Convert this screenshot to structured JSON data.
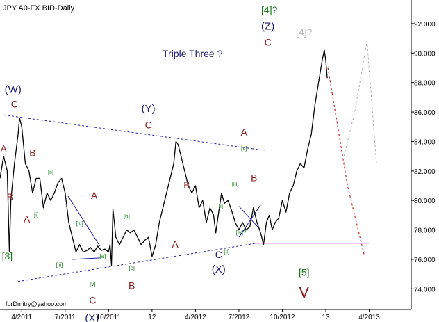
{
  "chart_data": {
    "type": "line",
    "title": "JPY A0-FX BID-Daily",
    "annotation_title": "Triple Three ?",
    "footer": "forDmitry@yahoo.com",
    "y_axis": {
      "position": "right",
      "range": [
        72.6,
        93.6
      ],
      "ticks": [
        74,
        76,
        78,
        80,
        82,
        84,
        86,
        88,
        90,
        92
      ],
      "tick_labels": [
        "74.000",
        "76.000",
        "78.000",
        "80.000",
        "82.000",
        "84.000",
        "86.000",
        "88.000",
        "90.000",
        "92.000"
      ]
    },
    "x_axis": {
      "range": [
        0,
        56.8
      ],
      "ticks": [
        {
          "x": 3,
          "label": "4/2011"
        },
        {
          "x": 9,
          "label": "7/2011"
        },
        {
          "x": 15,
          "label": "10/2011"
        },
        {
          "x": 21,
          "label": "12"
        },
        {
          "x": 27,
          "label": "4/2012"
        },
        {
          "x": 33,
          "label": "7/2012"
        },
        {
          "x": 39,
          "label": "10/2012"
        },
        {
          "x": 45,
          "label": "13"
        },
        {
          "x": 51,
          "label": "4/2013"
        }
      ]
    },
    "series": [
      {
        "values": [
          [
            0.0,
            81.5
          ],
          [
            0.5,
            83.0
          ],
          [
            1.0,
            82.0
          ],
          [
            1.3,
            76.5
          ],
          [
            1.5,
            80.0
          ],
          [
            2.0,
            82.5
          ],
          [
            2.5,
            84.5
          ],
          [
            2.7,
            85.6
          ],
          [
            3.0,
            85.0
          ],
          [
            3.5,
            82.5
          ],
          [
            4.0,
            82.0
          ],
          [
            4.5,
            80.5
          ],
          [
            5.0,
            81.5
          ],
          [
            5.5,
            81.5
          ],
          [
            6.0,
            79.5
          ],
          [
            6.5,
            80.5
          ],
          [
            7.0,
            80.0
          ],
          [
            7.5,
            80.5
          ],
          [
            8.0,
            81.2
          ],
          [
            8.5,
            81.5
          ],
          [
            9.0,
            80.5
          ],
          [
            9.5,
            78.5
          ],
          [
            10.0,
            77.5
          ],
          [
            10.5,
            76.5
          ],
          [
            11.0,
            77.0
          ],
          [
            11.5,
            76.5
          ],
          [
            12.0,
            76.6
          ],
          [
            12.5,
            76.8
          ],
          [
            13.0,
            76.5
          ],
          [
            13.5,
            76.9
          ],
          [
            14.0,
            76.6
          ],
          [
            14.5,
            76.7
          ],
          [
            15.0,
            76.5
          ],
          [
            15.2,
            77.0
          ],
          [
            15.4,
            75.6
          ],
          [
            15.6,
            79.4
          ],
          [
            16.0,
            77.5
          ],
          [
            16.5,
            77.0
          ],
          [
            17.0,
            77.5
          ],
          [
            17.5,
            78.0
          ],
          [
            18.0,
            77.8
          ],
          [
            18.5,
            78.0
          ],
          [
            19.0,
            77.5
          ],
          [
            19.5,
            77.0
          ],
          [
            20.0,
            77.3
          ],
          [
            20.5,
            77.5
          ],
          [
            21.0,
            76.2
          ],
          [
            21.5,
            77.0
          ],
          [
            22.0,
            78.5
          ],
          [
            22.5,
            79.5
          ],
          [
            23.0,
            80.5
          ],
          [
            23.5,
            81.5
          ],
          [
            24.0,
            82.5
          ],
          [
            24.3,
            84.0
          ],
          [
            24.6,
            83.8
          ],
          [
            25.0,
            83.0
          ],
          [
            25.5,
            82.0
          ],
          [
            26.0,
            81.0
          ],
          [
            26.5,
            80.5
          ],
          [
            27.0,
            81.0
          ],
          [
            27.5,
            79.5
          ],
          [
            28.0,
            80.0
          ],
          [
            28.5,
            78.5
          ],
          [
            29.0,
            79.5
          ],
          [
            29.5,
            79.0
          ],
          [
            29.8,
            77.8
          ],
          [
            30.2,
            79.2
          ],
          [
            30.6,
            80.5
          ],
          [
            31.0,
            79.8
          ],
          [
            31.5,
            80.0
          ],
          [
            32.0,
            79.3
          ],
          [
            32.5,
            78.5
          ],
          [
            33.0,
            78.0
          ],
          [
            33.5,
            78.5
          ],
          [
            34.0,
            78.0
          ],
          [
            34.5,
            78.2
          ],
          [
            35.0,
            79.5
          ],
          [
            35.5,
            78.5
          ],
          [
            36.0,
            77.8
          ],
          [
            36.4,
            77.0
          ],
          [
            36.8,
            78.5
          ],
          [
            37.2,
            79.0
          ],
          [
            37.6,
            78.0
          ],
          [
            38.0,
            78.5
          ],
          [
            38.5,
            78.8
          ],
          [
            39.0,
            80.0
          ],
          [
            39.5,
            79.2
          ],
          [
            40.0,
            80.5
          ],
          [
            40.5,
            81.0
          ],
          [
            41.0,
            82.0
          ],
          [
            41.5,
            82.5
          ],
          [
            42.0,
            82.2
          ],
          [
            42.5,
            83.5
          ],
          [
            43.0,
            84.5
          ],
          [
            43.5,
            86.5
          ],
          [
            44.0,
            88.0
          ],
          [
            44.5,
            89.5
          ],
          [
            44.8,
            90.2
          ],
          [
            45.0,
            89.5
          ],
          [
            45.2,
            88.3
          ]
        ]
      }
    ],
    "forecast_red": [
      [
        45.3,
        89.0
      ],
      [
        48.0,
        81.0
      ],
      [
        50.3,
        76.3
      ]
    ],
    "forecast_gray": [
      [
        47.5,
        83.0
      ],
      [
        49.0,
        86.0
      ],
      [
        50.7,
        90.8
      ],
      [
        52.0,
        82.5
      ]
    ],
    "channel_upper": [
      [
        0.5,
        85.8
      ],
      [
        36.5,
        83.4
      ]
    ],
    "channel_lower": [
      [
        2.5,
        74.5
      ],
      [
        35.5,
        77.1
      ]
    ],
    "horizontal_line": {
      "value": 77.1,
      "x": [
        35.0,
        51.0
      ]
    },
    "triangle_lines": [
      [
        [
          9.4,
          80.3
        ],
        [
          13.8,
          76.9
        ],
        [
          10.0,
          76.0
        ],
        [
          13.8,
          76.1
        ]
      ],
      [
        [
          33.0,
          79.6
        ],
        [
          36.0,
          78.0
        ],
        [
          33.0,
          77.5
        ],
        [
          36.0,
          79.7
        ]
      ]
    ],
    "wave_labels": [
      {
        "text": "(W)",
        "x": 1.8,
        "y": 87.3,
        "color": "#1a1a6e"
      },
      {
        "text": "C",
        "x": 2.0,
        "y": 86.3,
        "color": "#8b1a1a"
      },
      {
        "text": "A",
        "x": 0.5,
        "y": 83.3,
        "color": "#8b1a1a"
      },
      {
        "text": "B",
        "x": 1.4,
        "y": 80.0,
        "color": "#8b1a1a"
      },
      {
        "text": "[3]",
        "x": 1.0,
        "y": 76.0,
        "color": "#1a7a1a"
      },
      {
        "text": "B",
        "x": 4.5,
        "y": 83.0,
        "color": "#8b1a1a"
      },
      {
        "text": "A",
        "x": 3.7,
        "y": 78.5,
        "color": "#8b1a1a"
      },
      {
        "text": "[i]",
        "x": 5.0,
        "y": 78.9,
        "color": "#1a7a1a"
      },
      {
        "text": "[ii]",
        "x": 7.0,
        "y": 81.8,
        "color": "#1a7a1a"
      },
      {
        "text": "[iii]",
        "x": 8.2,
        "y": 75.5,
        "color": "#1a7a1a"
      },
      {
        "text": "[iv]",
        "x": 11.0,
        "y": 78.3,
        "color": "#1a7a1a"
      },
      {
        "text": "[v]",
        "x": 12.8,
        "y": 74.2,
        "color": "#1a7a1a"
      },
      {
        "text": "C",
        "x": 12.8,
        "y": 73.0,
        "color": "#8b1a1a"
      },
      {
        "text": "(X)",
        "x": 12.7,
        "y": 71.8,
        "color": "#1a1a6e"
      },
      {
        "text": "A",
        "x": 13.0,
        "y": 80.1,
        "color": "#8b1a1a"
      },
      {
        "text": "[a]",
        "x": 14.2,
        "y": 76.1,
        "color": "#1a7a1a"
      },
      {
        "text": "[b]",
        "x": 17.5,
        "y": 78.8,
        "color": "#1a7a1a"
      },
      {
        "text": "[c]",
        "x": 18.2,
        "y": 75.3,
        "color": "#1a7a1a"
      },
      {
        "text": "B",
        "x": 18.2,
        "y": 74.0,
        "color": "#8b1a1a"
      },
      {
        "text": "(Y)",
        "x": 20.5,
        "y": 86.0,
        "color": "#1a1a6e"
      },
      {
        "text": "C",
        "x": 20.5,
        "y": 84.9,
        "color": "#8b1a1a"
      },
      {
        "text": "A",
        "x": 24.2,
        "y": 76.8,
        "color": "#8b1a1a"
      },
      {
        "text": "B",
        "x": 25.8,
        "y": 80.8,
        "color": "#8b1a1a"
      },
      {
        "text": "[i]",
        "x": 30.5,
        "y": 79.5,
        "color": "#1a7a1a"
      },
      {
        "text": "[ii]",
        "x": 31.3,
        "y": 76.4,
        "color": "#1a7a1a"
      },
      {
        "text": "C",
        "x": 30.2,
        "y": 76.1,
        "color": "#1a1a6e"
      },
      {
        "text": "(X)",
        "x": 30.2,
        "y": 75.1,
        "color": "#1a1a6e"
      },
      {
        "text": "[iii]",
        "x": 32.5,
        "y": 81.0,
        "color": "#1a7a1a"
      },
      {
        "text": "[iv]?",
        "x": 33.3,
        "y": 77.7,
        "color": "#1a7a1a"
      },
      {
        "text": "A",
        "x": 33.7,
        "y": 84.4,
        "color": "#8b1a1a"
      },
      {
        "text": "[v]",
        "x": 33.7,
        "y": 83.4,
        "color": "#1a7a1a"
      },
      {
        "text": "B",
        "x": 35.1,
        "y": 81.3,
        "color": "#8b1a1a"
      },
      {
        "text": "[4]?",
        "x": 37.2,
        "y": 92.7,
        "color": "#1a7a1a"
      },
      {
        "text": "(Z)",
        "x": 37.0,
        "y": 91.6,
        "color": "#1a1a6e"
      },
      {
        "text": "C",
        "x": 37.0,
        "y": 90.5,
        "color": "#8b1a1a"
      },
      {
        "text": "[4]?",
        "x": 42.0,
        "y": 91.2,
        "color": "#bbbbbb"
      },
      {
        "text": "[5]",
        "x": 42.0,
        "y": 74.9,
        "color": "#1a7a1a"
      },
      {
        "text": "V",
        "x": 42.0,
        "y": 73.4,
        "color": "#8b1a1a"
      }
    ],
    "colors": {
      "price": "#000000",
      "channel": "#1a1aa8",
      "horizontal": "#cc33cc",
      "forecast_red": "#cc2222",
      "forecast_gray": "#aaaaaa"
    }
  }
}
